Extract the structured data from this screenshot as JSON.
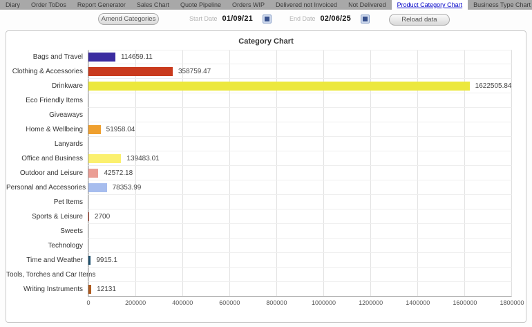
{
  "tabs": {
    "items": [
      {
        "label": "Diary",
        "active": false
      },
      {
        "label": "Order ToDos",
        "active": false
      },
      {
        "label": "Report Generator",
        "active": false
      },
      {
        "label": "Sales Chart",
        "active": false
      },
      {
        "label": "Quote Pipeline",
        "active": false
      },
      {
        "label": "Orders WIP",
        "active": false
      },
      {
        "label": "Delivered not Invoiced",
        "active": false
      },
      {
        "label": "Not Delivered",
        "active": false
      },
      {
        "label": "Product Category Chart",
        "active": true
      },
      {
        "label": "Business Type Chart",
        "active": false
      }
    ],
    "active_color": "#0000c8",
    "bar_color": "#a8a8a8"
  },
  "toolbar": {
    "amend_button": "Amend Categories",
    "start_date_label": "Start Date",
    "start_date_value": "01/09/21",
    "end_date_label": "End Date",
    "end_date_value": "02/06/25",
    "reload_button": "Reload data",
    "start_calendar_icon": "calendar-icon",
    "end_calendar_icon": "calendar-icon"
  },
  "chart_data": {
    "type": "bar",
    "orientation": "horizontal",
    "title": "Category Chart",
    "grid": true,
    "xlim": [
      0,
      1800000
    ],
    "x_ticks": [
      "0",
      "200000",
      "400000",
      "600000",
      "800000",
      "1000000",
      "1200000",
      "1400000",
      "1600000",
      "1800000"
    ],
    "rows": [
      {
        "label": "Bags and Travel",
        "value": 114659.11,
        "display": "114659.11",
        "color": "#3a2ba0"
      },
      {
        "label": "Clothing & Accessories",
        "value": 358759.47,
        "display": "358759.47",
        "color": "#c93a1d"
      },
      {
        "label": "Drinkware",
        "value": 1622505.84,
        "display": "1622505.84",
        "color": "#ece83d"
      },
      {
        "label": "Eco Friendly Items",
        "value": 0,
        "display": "",
        "color": null
      },
      {
        "label": "Giveaways",
        "value": 0,
        "display": "",
        "color": null
      },
      {
        "label": "Home & Wellbeing",
        "value": 51958.04,
        "display": "51958.04",
        "color": "#efa02f"
      },
      {
        "label": "Lanyards",
        "value": 0,
        "display": "",
        "color": null
      },
      {
        "label": "Office and Business",
        "value": 139483.01,
        "display": "139483.01",
        "color": "#fbf06e"
      },
      {
        "label": "Outdoor and Leisure",
        "value": 42572.18,
        "display": "42572.18",
        "color": "#eb9e95"
      },
      {
        "label": "Personal and Accessories",
        "value": 78353.99,
        "display": "78353.99",
        "color": "#a7bdee"
      },
      {
        "label": "Pet Items",
        "value": 0,
        "display": "",
        "color": null
      },
      {
        "label": "Sports & Leisure",
        "value": 2700,
        "display": "2700",
        "color": "#a03c2a"
      },
      {
        "label": "Sweets",
        "value": 0,
        "display": "",
        "color": null
      },
      {
        "label": "Technology",
        "value": 0,
        "display": "",
        "color": null
      },
      {
        "label": "Time and Weather",
        "value": 9915.1,
        "display": "9915.1",
        "color": "#1f516f"
      },
      {
        "label": "Tools, Torches and Car Items",
        "value": 0,
        "display": "",
        "color": null
      },
      {
        "label": "Writing Instruments",
        "value": 12131,
        "display": "12131",
        "color": "#ae5a1e"
      }
    ]
  }
}
